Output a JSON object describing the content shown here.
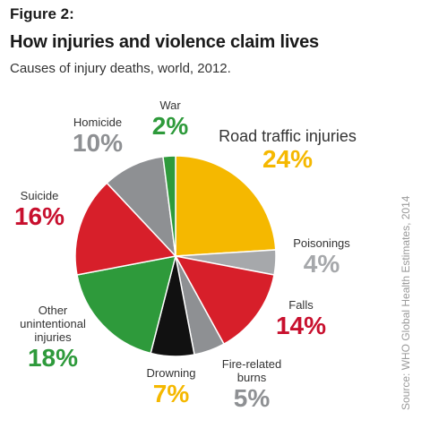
{
  "figure_label": "Figure 2:",
  "title": "How injuries and violence claim lives",
  "subtitle": "Causes of injury deaths, world, 2012.",
  "source": "Source: WHO Global Health Estimates, 2014",
  "chart_data": {
    "type": "pie",
    "title": "How injuries and violence claim lives",
    "subtitle": "Causes of injury deaths, world, 2012.",
    "unit": "%",
    "start": "12 o'clock, clockwise",
    "slices": [
      {
        "name": "Road traffic injuries",
        "value": 24,
        "label": "24%",
        "color": "#f5b800",
        "pct_color": "#f5b800"
      },
      {
        "name": "Poisonings",
        "value": 4,
        "label": "4%",
        "color": "#a6a8ab",
        "pct_color": "#a6a8ab"
      },
      {
        "name": "Falls",
        "value": 14,
        "label": "14%",
        "color": "#d71f2a",
        "pct_color": "#c8102e"
      },
      {
        "name": "Fire-related burns",
        "value": 5,
        "label": "5%",
        "color": "#8e9093",
        "pct_color": "#8e9093"
      },
      {
        "name": "Drowning",
        "value": 7,
        "label": "7%",
        "color": "#111111",
        "pct_color": "#f5b800"
      },
      {
        "name": "Other unintentional injuries",
        "value": 18,
        "label": "18%",
        "color": "#2e9a3b",
        "pct_color": "#2e9a3b"
      },
      {
        "name": "Suicide",
        "value": 16,
        "label": "16%",
        "color": "#d71f2a",
        "pct_color": "#c8102e"
      },
      {
        "name": "Homicide",
        "value": 10,
        "label": "10%",
        "color": "#8e9093",
        "pct_color": "#8e9093"
      },
      {
        "name": "War",
        "value": 2,
        "label": "2%",
        "color": "#2e9a3b",
        "pct_color": "#2e9a3b"
      }
    ]
  },
  "labels": [
    {
      "id": "road",
      "lines": [
        "Road traffic injuries"
      ],
      "pct": "24%",
      "pct_color": "#f5b800"
    },
    {
      "id": "poison",
      "lines": [
        "Poisonings"
      ],
      "pct": "4%",
      "pct_color": "#a6a8ab"
    },
    {
      "id": "falls",
      "lines": [
        "Falls"
      ],
      "pct": "14%",
      "pct_color": "#c8102e"
    },
    {
      "id": "fire",
      "lines": [
        "Fire-related",
        "burns"
      ],
      "pct": "5%",
      "pct_color": "#8e9093"
    },
    {
      "id": "drown",
      "lines": [
        "Drowning"
      ],
      "pct": "7%",
      "pct_color": "#f5b800"
    },
    {
      "id": "other",
      "lines": [
        "Other",
        "unintentional",
        "injuries"
      ],
      "pct": "18%",
      "pct_color": "#2e9a3b"
    },
    {
      "id": "suicide",
      "lines": [
        "Suicide"
      ],
      "pct": "16%",
      "pct_color": "#c8102e"
    },
    {
      "id": "homicide",
      "lines": [
        "Homicide"
      ],
      "pct": "10%",
      "pct_color": "#8e9093"
    },
    {
      "id": "war",
      "lines": [
        "War"
      ],
      "pct": "2%",
      "pct_color": "#2e9a3b"
    }
  ]
}
